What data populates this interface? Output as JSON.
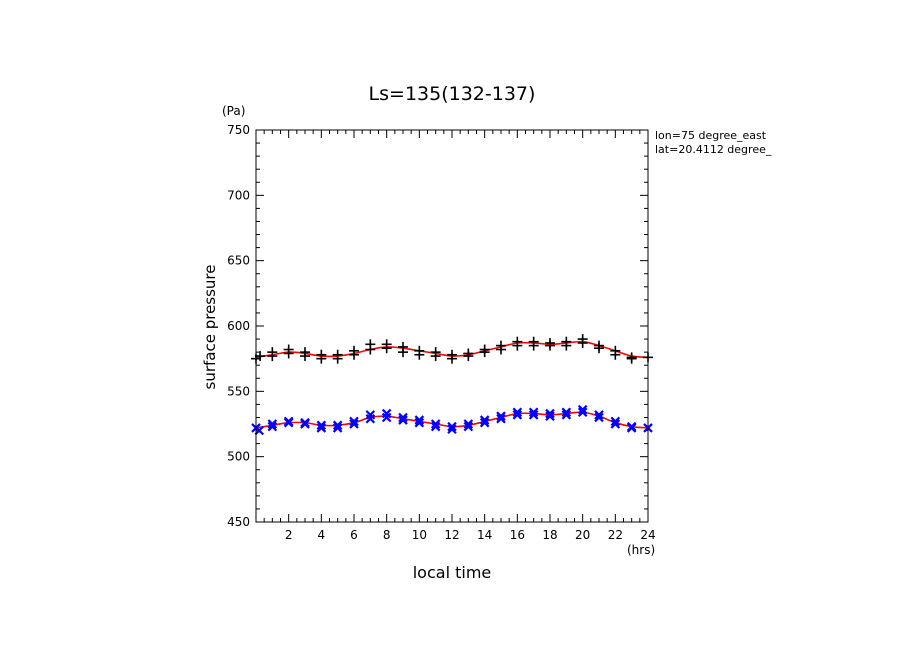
{
  "chart_data": {
    "type": "scatter",
    "title": "Ls=135(132-137)",
    "xlabel": "local time",
    "ylabel": "surface pressure",
    "x_unit": "(hrs)",
    "y_unit": "(Pa)",
    "xlim": [
      0,
      24
    ],
    "ylim": [
      450,
      750
    ],
    "xticks": [
      2,
      4,
      6,
      8,
      10,
      12,
      14,
      16,
      18,
      20,
      22,
      24
    ],
    "yticks": [
      450,
      500,
      550,
      600,
      650,
      700,
      750
    ],
    "grid": false,
    "annotations": [
      "lon=75 degree_east",
      "lat=20.4112 degree_"
    ],
    "colors": {
      "fit_line": "#ff0000",
      "series_upper": "#000000",
      "series_lower": "#0000ff"
    },
    "series": [
      {
        "marker": "plus",
        "color": "#000000",
        "points": [
          [
            0,
            575
          ],
          [
            0.25,
            577
          ],
          [
            1,
            577
          ],
          [
            1,
            580
          ],
          [
            2,
            582
          ],
          [
            2,
            579
          ],
          [
            3,
            580
          ],
          [
            3,
            577
          ],
          [
            4,
            578
          ],
          [
            4,
            575
          ],
          [
            5,
            578
          ],
          [
            5,
            575
          ],
          [
            6,
            581
          ],
          [
            6,
            578
          ],
          [
            7,
            586
          ],
          [
            7,
            582
          ],
          [
            8,
            586
          ],
          [
            8,
            583
          ],
          [
            9,
            584
          ],
          [
            9,
            580
          ],
          [
            10,
            581
          ],
          [
            10,
            578
          ],
          [
            11,
            580
          ],
          [
            11,
            577
          ],
          [
            12,
            578
          ],
          [
            12,
            575
          ],
          [
            13,
            579
          ],
          [
            13,
            577
          ],
          [
            14,
            582
          ],
          [
            14,
            580
          ],
          [
            15,
            585
          ],
          [
            15,
            582
          ],
          [
            16,
            588
          ],
          [
            16,
            585
          ],
          [
            17,
            588
          ],
          [
            17,
            585
          ],
          [
            18,
            587
          ],
          [
            18,
            585
          ],
          [
            19,
            588
          ],
          [
            19,
            585
          ],
          [
            20,
            590
          ],
          [
            20,
            587
          ],
          [
            21,
            585
          ],
          [
            21,
            583
          ],
          [
            22,
            581
          ],
          [
            22,
            578
          ],
          [
            23,
            576
          ],
          [
            23,
            575
          ],
          [
            24,
            576
          ]
        ]
      },
      {
        "marker": "x",
        "color": "#0000ff",
        "points": [
          [
            0,
            522
          ],
          [
            0.2,
            520
          ],
          [
            1,
            525
          ],
          [
            1,
            523
          ],
          [
            2,
            527
          ],
          [
            2,
            526
          ],
          [
            3,
            526
          ],
          [
            3,
            525
          ],
          [
            4,
            524
          ],
          [
            4,
            522
          ],
          [
            5,
            524
          ],
          [
            5,
            522
          ],
          [
            6,
            527
          ],
          [
            6,
            525
          ],
          [
            7,
            532
          ],
          [
            7,
            529
          ],
          [
            8,
            533
          ],
          [
            8,
            530
          ],
          [
            9,
            530
          ],
          [
            9,
            528
          ],
          [
            10,
            528
          ],
          [
            10,
            526
          ],
          [
            11,
            525
          ],
          [
            11,
            523
          ],
          [
            12,
            523
          ],
          [
            12,
            521
          ],
          [
            13,
            525
          ],
          [
            13,
            523
          ],
          [
            14,
            528
          ],
          [
            14,
            526
          ],
          [
            15,
            531
          ],
          [
            15,
            529
          ],
          [
            16,
            534
          ],
          [
            16,
            532
          ],
          [
            17,
            534
          ],
          [
            17,
            532
          ],
          [
            18,
            533
          ],
          [
            18,
            531
          ],
          [
            19,
            534
          ],
          [
            19,
            532
          ],
          [
            20,
            536
          ],
          [
            20,
            534
          ],
          [
            21,
            532
          ],
          [
            21,
            530
          ],
          [
            22,
            527
          ],
          [
            22,
            525
          ],
          [
            23,
            523
          ],
          [
            23,
            522
          ],
          [
            24,
            522
          ]
        ]
      }
    ],
    "fits": [
      {
        "color": "#ff0000",
        "x": [
          0,
          1,
          2,
          3,
          4,
          5,
          6,
          7,
          8,
          9,
          10,
          11,
          12,
          13,
          14,
          15,
          16,
          17,
          18,
          19,
          20,
          21,
          22,
          23,
          24
        ],
        "y": [
          576,
          578,
          580,
          579,
          577,
          577,
          579,
          582,
          584,
          583,
          581,
          579,
          577,
          578,
          581,
          584,
          587,
          587,
          586,
          587,
          588,
          585,
          581,
          577,
          576
        ]
      },
      {
        "color": "#ff0000",
        "x": [
          0,
          1,
          2,
          3,
          4,
          5,
          6,
          7,
          8,
          9,
          10,
          11,
          12,
          13,
          14,
          15,
          16,
          17,
          18,
          19,
          20,
          21,
          22,
          23,
          24
        ],
        "y": [
          522,
          524,
          526,
          526,
          524,
          524,
          526,
          530,
          531,
          529,
          527,
          525,
          523,
          524,
          527,
          530,
          533,
          533,
          532,
          533,
          534,
          531,
          526,
          523,
          522
        ]
      }
    ]
  }
}
